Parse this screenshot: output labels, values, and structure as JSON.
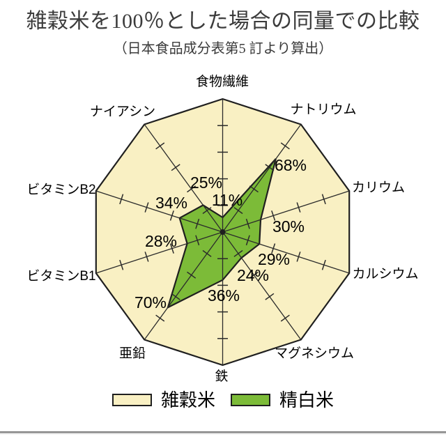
{
  "page": {
    "title": "雑穀米を100％とした場合の同量での比較",
    "subtitle": "（日本食品成分表第5 訂より算出）"
  },
  "chart_data": {
    "type": "radar",
    "title": "雑穀米を100％とした場合の同量での比較",
    "subtitle": "（日本食品成分表第5 訂より算出）",
    "categories": [
      "食物繊維",
      "ナトリウム",
      "カリウム",
      "カルシウム",
      "マグネシウム",
      "鉄",
      "亜鉛",
      "ビタミンB1",
      "ビタミンB2",
      "ナイアシン"
    ],
    "series": [
      {
        "name": "雑穀米",
        "values": [
          100,
          100,
          100,
          100,
          100,
          100,
          100,
          100,
          100,
          100
        ],
        "color": "#F9F0C3"
      },
      {
        "name": "精白米",
        "values": [
          11,
          68,
          30,
          29,
          24,
          36,
          70,
          28,
          34,
          25
        ],
        "color": "#7CBB38"
      }
    ],
    "value_labels": [
      "11%",
      "68%",
      "30%",
      "29%",
      "24%",
      "36%",
      "70%",
      "28%",
      "34%",
      "25%"
    ],
    "unit": "%",
    "axis_range": [
      0,
      100
    ],
    "tick_interval": 20,
    "grid": "tick-marks-on-spokes-only",
    "legend_position": "bottom",
    "colors": {
      "outline": "#1f1f1f",
      "axis": "#2b2b2b",
      "label_text": "#000000",
      "title_text": "#3b3b3b",
      "divider": "#7f7f7f"
    }
  }
}
